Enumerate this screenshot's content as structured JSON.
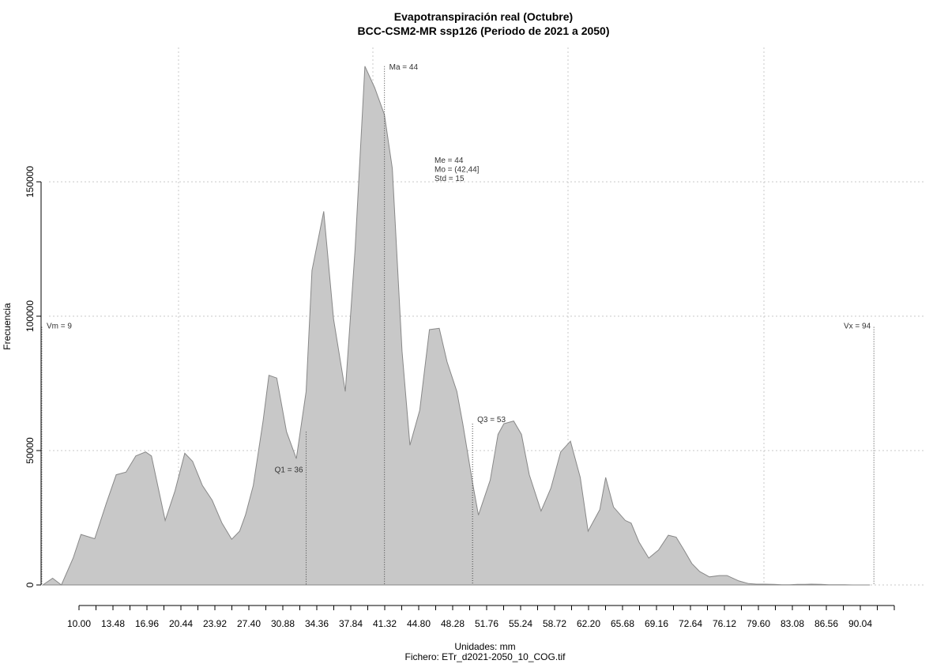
{
  "chart_data": {
    "type": "area",
    "title": "Evapotranspiración real (Octubre)",
    "subtitle": "BCC-CSM2-MR ssp126 (Periodo de 2021 a 2050)",
    "xlabel": "Unidades: mm",
    "file_label": "Fichero: ETr_d2021-2050_10_COG.tif",
    "ylabel": "Frecuencia",
    "xlim": [
      9,
      94
    ],
    "ylim": [
      0,
      193000
    ],
    "yticks": [
      0,
      50000,
      100000,
      150000
    ],
    "ytick_labels": [
      "0",
      "50000",
      "100000",
      "150000"
    ],
    "xticks": [
      10,
      13.48,
      16.96,
      20.44,
      23.92,
      27.4,
      30.88,
      34.36,
      37.84,
      41.32,
      44.8,
      48.28,
      51.76,
      55.24,
      58.72,
      62.2,
      65.68,
      69.16,
      72.64,
      76.12,
      79.6,
      83.08,
      86.56,
      90.04
    ],
    "xtick_labels": [
      "10.00",
      "13.48",
      "16.96",
      "20.44",
      "23.92",
      "27.40",
      "30.88",
      "34.36",
      "37.84",
      "41.32",
      "44.80",
      "48.28",
      "51.76",
      "55.24",
      "58.72",
      "62.20",
      "65.68",
      "69.16",
      "72.64",
      "76.12",
      "79.60",
      "83.08",
      "86.56",
      "90.04"
    ],
    "grid": true,
    "fill_color": "#c8c8c8",
    "line_color": "#888888",
    "series": [
      {
        "x": [
          9.1,
          10.1,
          11.0,
          12.2,
          13.0,
          14.4,
          15.6,
          16.6,
          17.6,
          18.6,
          19.6,
          20.2,
          21.6,
          22.6,
          23.6,
          24.4,
          25.4,
          26.4,
          27.4,
          28.4,
          29.2,
          29.8,
          30.6,
          31.6,
          32.2,
          33.0,
          34.0,
          35.0,
          36.0,
          36.6,
          37.8,
          38.8,
          40.0,
          41.0,
          42.0,
          43.0,
          44.0,
          44.8,
          45.8,
          46.6,
          47.6,
          48.6,
          49.6,
          50.4,
          51.4,
          52.0,
          53.0,
          53.6,
          54.8,
          55.6,
          56.2,
          57.2,
          58.0,
          58.8,
          60.0,
          61.0,
          62.0,
          63.0,
          64.0,
          64.8,
          66.0,
          66.6,
          67.4,
          68.6,
          69.2,
          70.0,
          71.0,
          72.0,
          73.0,
          73.8,
          74.6,
          75.4,
          76.2,
          77.2,
          78.2,
          79.0,
          80.2,
          81.2,
          82.0,
          82.8,
          83.8,
          84.6,
          85.4,
          86.2,
          87.0,
          87.6,
          88.6,
          89.4,
          90.2,
          91.0,
          91.8,
          92.6,
          93.6
        ],
        "y": [
          0,
          2500,
          0,
          10000,
          18800,
          17200,
          30500,
          41000,
          42000,
          48000,
          49500,
          48000,
          24000,
          35000,
          49000,
          46000,
          37000,
          31500,
          23000,
          17000,
          20000,
          26000,
          37000,
          61000,
          78000,
          77000,
          57000,
          47000,
          72000,
          117000,
          139000,
          99000,
          72000,
          125000,
          193000,
          185000,
          175000,
          155000,
          87000,
          52000,
          65000,
          95000,
          95500,
          83000,
          72000,
          60000,
          38000,
          26000,
          39000,
          56000,
          60000,
          61000,
          56000,
          41000,
          27500,
          36000,
          49500,
          53500,
          40000,
          20000,
          28000,
          40000,
          29000,
          24000,
          23000,
          16000,
          10000,
          13000,
          18500,
          17800,
          13000,
          8000,
          5000,
          3000,
          3500,
          3500,
          1500,
          500,
          300,
          300,
          200,
          100,
          100,
          200,
          200,
          300,
          200,
          100,
          100,
          100,
          0,
          0,
          0
        ]
      }
    ],
    "vlines": [
      {
        "x": 9,
        "ytop": 96000,
        "label": "Vm = 9",
        "label_side": "right"
      },
      {
        "x": 36,
        "ytop": 57000,
        "label": "Q1 = 36",
        "label_side": "left"
      },
      {
        "x": 44,
        "ytop": 193000,
        "label": "Ma = 44",
        "label_side": "right"
      },
      {
        "x": 53,
        "ytop": 60000,
        "label": "Q3 = 53",
        "label_side": "right"
      },
      {
        "x": 94,
        "ytop": 96000,
        "label": "Vx = 94",
        "label_side": "left"
      }
    ],
    "stats_text": [
      "Me = 44",
      "Mo = (42,44]",
      "Std = 15"
    ]
  }
}
